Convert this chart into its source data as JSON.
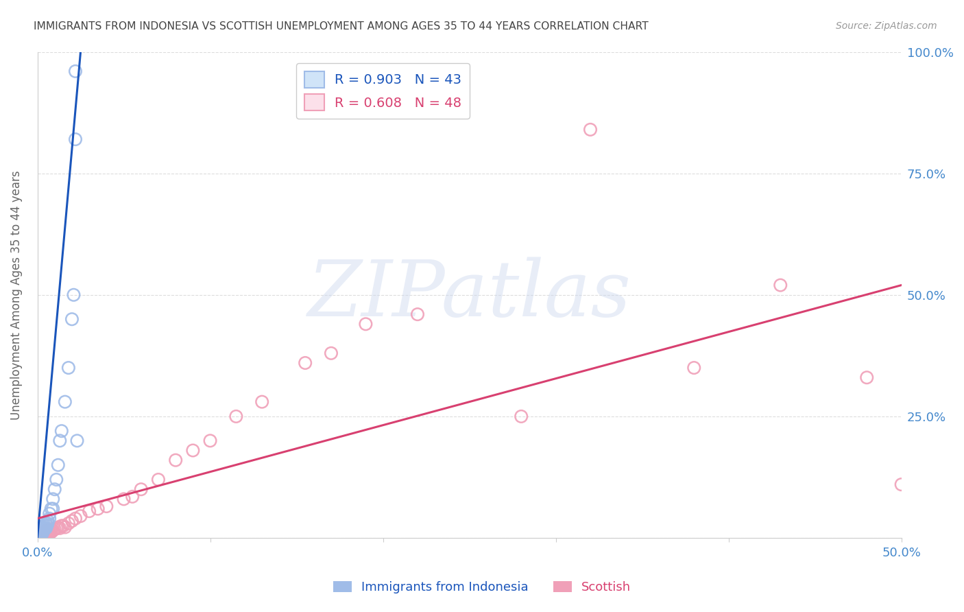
{
  "title": "IMMIGRANTS FROM INDONESIA VS SCOTTISH UNEMPLOYMENT AMONG AGES 35 TO 44 YEARS CORRELATION CHART",
  "source": "Source: ZipAtlas.com",
  "ylabel": "Unemployment Among Ages 35 to 44 years",
  "xlim": [
    0.0,
    0.5
  ],
  "ylim": [
    0.0,
    1.0
  ],
  "series1_label": "Immigrants from Indonesia",
  "series1_R": "0.903",
  "series1_N": "43",
  "series1_color": "#a0bce8",
  "series1_line_color": "#1a55bb",
  "series2_label": "Scottish",
  "series2_R": "0.608",
  "series2_N": "48",
  "series2_color": "#f0a0b8",
  "series2_line_color": "#d84070",
  "watermark": "ZIPatlas",
  "background_color": "#ffffff",
  "grid_color": "#dddddd",
  "axis_color": "#4488cc",
  "title_color": "#444444",
  "blue_x": [
    0.0005,
    0.001,
    0.001,
    0.0012,
    0.0015,
    0.0015,
    0.002,
    0.002,
    0.002,
    0.0022,
    0.0025,
    0.0025,
    0.003,
    0.003,
    0.003,
    0.003,
    0.0032,
    0.0035,
    0.004,
    0.004,
    0.0042,
    0.005,
    0.005,
    0.0055,
    0.006,
    0.006,
    0.007,
    0.007,
    0.008,
    0.009,
    0.009,
    0.01,
    0.011,
    0.012,
    0.013,
    0.014,
    0.016,
    0.018,
    0.02,
    0.021,
    0.022,
    0.022,
    0.023
  ],
  "blue_y": [
    0.005,
    0.005,
    0.008,
    0.005,
    0.006,
    0.01,
    0.005,
    0.008,
    0.012,
    0.01,
    0.015,
    0.008,
    0.01,
    0.012,
    0.015,
    0.018,
    0.02,
    0.015,
    0.018,
    0.022,
    0.025,
    0.02,
    0.03,
    0.025,
    0.03,
    0.035,
    0.04,
    0.05,
    0.06,
    0.06,
    0.08,
    0.1,
    0.12,
    0.15,
    0.2,
    0.22,
    0.28,
    0.35,
    0.45,
    0.5,
    0.82,
    0.96,
    0.2
  ],
  "pink_x": [
    0.001,
    0.002,
    0.003,
    0.003,
    0.004,
    0.004,
    0.005,
    0.005,
    0.006,
    0.006,
    0.007,
    0.007,
    0.008,
    0.008,
    0.009,
    0.01,
    0.011,
    0.012,
    0.013,
    0.014,
    0.015,
    0.016,
    0.018,
    0.02,
    0.022,
    0.025,
    0.03,
    0.035,
    0.04,
    0.05,
    0.055,
    0.06,
    0.07,
    0.08,
    0.09,
    0.1,
    0.115,
    0.13,
    0.155,
    0.17,
    0.19,
    0.22,
    0.28,
    0.32,
    0.38,
    0.43,
    0.48,
    0.5
  ],
  "pink_y": [
    0.005,
    0.008,
    0.005,
    0.01,
    0.008,
    0.012,
    0.01,
    0.015,
    0.008,
    0.012,
    0.01,
    0.015,
    0.012,
    0.018,
    0.015,
    0.018,
    0.02,
    0.022,
    0.02,
    0.025,
    0.025,
    0.022,
    0.03,
    0.035,
    0.04,
    0.045,
    0.055,
    0.06,
    0.065,
    0.08,
    0.085,
    0.1,
    0.12,
    0.16,
    0.18,
    0.2,
    0.25,
    0.28,
    0.36,
    0.38,
    0.44,
    0.46,
    0.25,
    0.84,
    0.35,
    0.52,
    0.33,
    0.11
  ],
  "blue_line_x": [
    0.0,
    0.025
  ],
  "blue_line_y": [
    0.0,
    1.0
  ],
  "pink_line_x": [
    0.0,
    0.5
  ],
  "pink_line_y": [
    0.04,
    0.52
  ]
}
